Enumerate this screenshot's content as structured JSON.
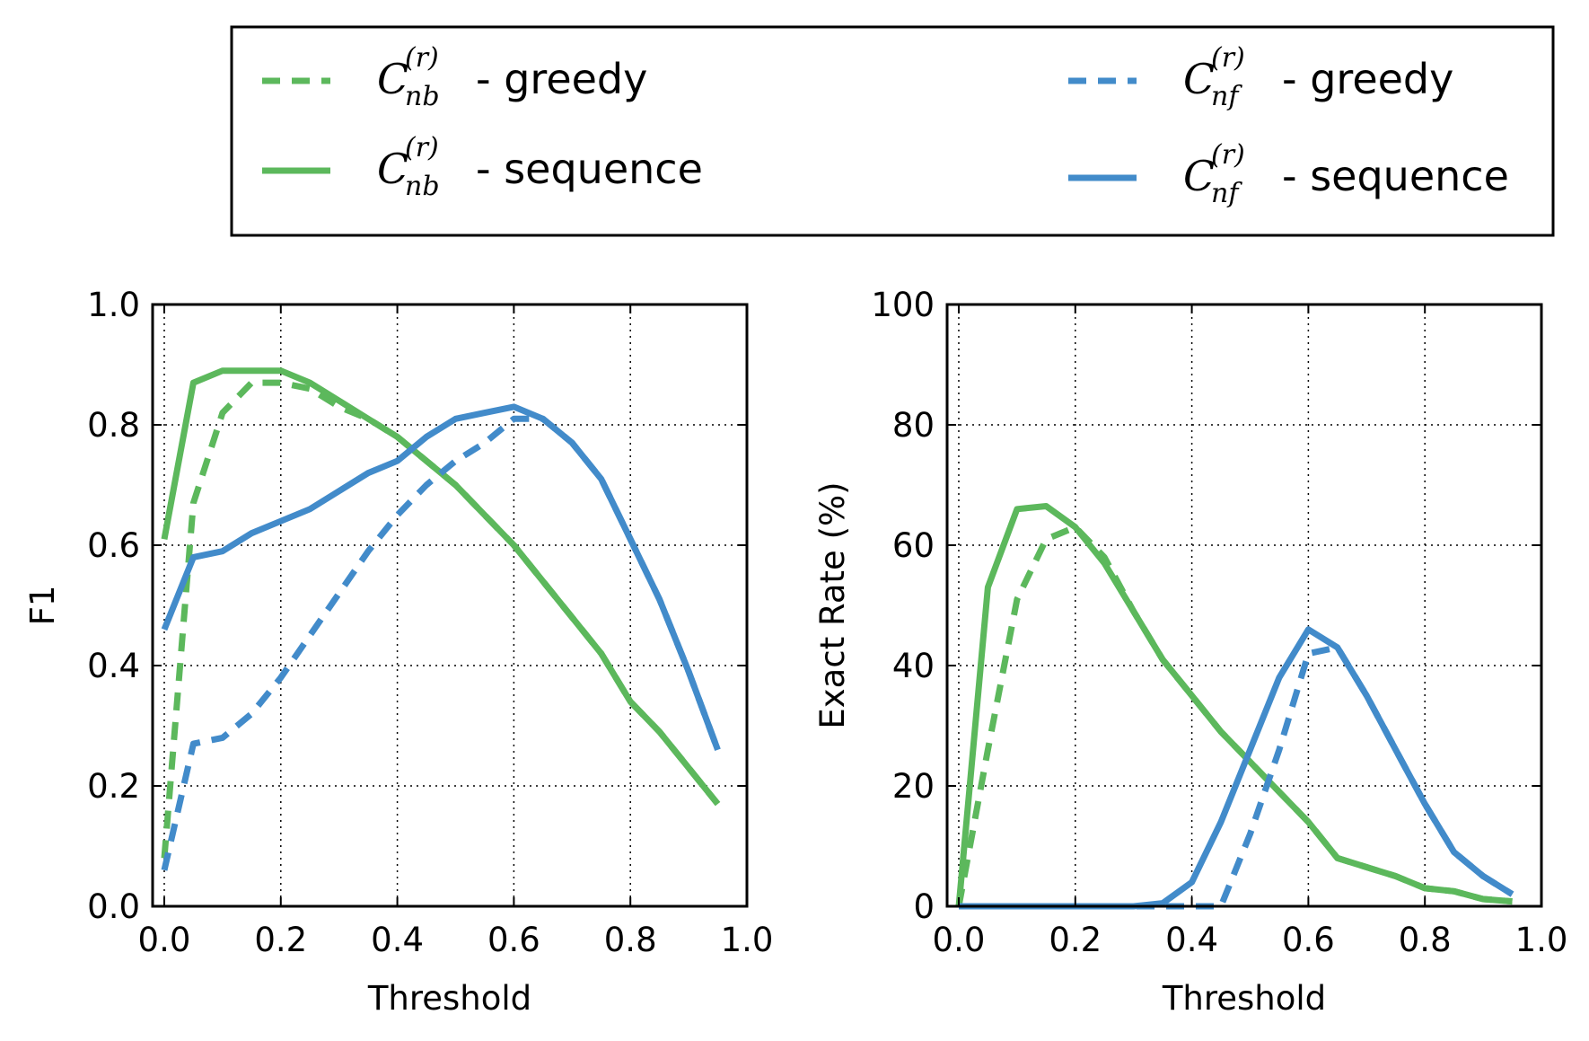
{
  "legend": {
    "entries": [
      {
        "symbol": "C",
        "sub": "nb",
        "sup": "(r)",
        "suffix": "- greedy",
        "color": "#5cb85c",
        "dash": true
      },
      {
        "symbol": "C",
        "sub": "nb",
        "sup": "(r)",
        "suffix": "- sequence",
        "color": "#5cb85c",
        "dash": false
      },
      {
        "symbol": "C",
        "sub": "nf",
        "sup": "(r)",
        "suffix": "- greedy",
        "color": "#428bca",
        "dash": true
      },
      {
        "symbol": "C",
        "sub": "nf",
        "sup": "(r)",
        "suffix": "- sequence",
        "color": "#428bca",
        "dash": false
      }
    ]
  },
  "chart_data": [
    {
      "type": "line",
      "xlabel": "Threshold",
      "ylabel": "F1",
      "xlim": [
        -0.02,
        1.0
      ],
      "ylim": [
        0.0,
        1.0
      ],
      "xticks": [
        "0.0",
        "0.2",
        "0.4",
        "0.6",
        "0.8",
        "1.0"
      ],
      "yticks": [
        "0.0",
        "0.2",
        "0.4",
        "0.6",
        "0.8",
        "1.0"
      ],
      "grid": true,
      "x": [
        0.0,
        0.05,
        0.1,
        0.15,
        0.2,
        0.25,
        0.3,
        0.35,
        0.4,
        0.45,
        0.5,
        0.55,
        0.6,
        0.65,
        0.7,
        0.75,
        0.8,
        0.85,
        0.9,
        0.95
      ],
      "series": [
        {
          "legend_index": 0,
          "color": "#5cb85c",
          "dash": true,
          "values": [
            0.08,
            0.67,
            0.82,
            0.87,
            0.87,
            0.86,
            0.83,
            0.81,
            0.78,
            0.74,
            0.7,
            0.65,
            0.6,
            0.54,
            0.48,
            0.42,
            0.34,
            0.29,
            0.23,
            0.17
          ]
        },
        {
          "legend_index": 1,
          "color": "#5cb85c",
          "dash": false,
          "values": [
            0.61,
            0.87,
            0.89,
            0.89,
            0.89,
            0.87,
            0.84,
            0.81,
            0.78,
            0.74,
            0.7,
            0.65,
            0.6,
            0.54,
            0.48,
            0.42,
            0.34,
            0.29,
            0.23,
            0.17
          ]
        },
        {
          "legend_index": 2,
          "color": "#428bca",
          "dash": true,
          "values": [
            0.06,
            0.27,
            0.28,
            0.32,
            0.38,
            0.45,
            0.52,
            0.59,
            0.65,
            0.7,
            0.74,
            0.77,
            0.81,
            0.81,
            0.77,
            0.71,
            0.61,
            0.51,
            0.39,
            0.26
          ]
        },
        {
          "legend_index": 3,
          "color": "#428bca",
          "dash": false,
          "values": [
            0.46,
            0.58,
            0.59,
            0.62,
            0.64,
            0.66,
            0.69,
            0.72,
            0.74,
            0.78,
            0.81,
            0.82,
            0.83,
            0.81,
            0.77,
            0.71,
            0.61,
            0.51,
            0.39,
            0.26
          ]
        }
      ]
    },
    {
      "type": "line",
      "xlabel": "Threshold",
      "ylabel": "Exact Rate (%)",
      "xlim": [
        -0.02,
        1.0
      ],
      "ylim": [
        0,
        100
      ],
      "xticks": [
        "0.0",
        "0.2",
        "0.4",
        "0.6",
        "0.8",
        "1.0"
      ],
      "yticks": [
        "0",
        "20",
        "40",
        "60",
        "80",
        "100"
      ],
      "grid": true,
      "x": [
        0.0,
        0.05,
        0.1,
        0.15,
        0.2,
        0.25,
        0.3,
        0.35,
        0.4,
        0.45,
        0.5,
        0.55,
        0.6,
        0.65,
        0.7,
        0.75,
        0.8,
        0.85,
        0.9,
        0.95
      ],
      "series": [
        {
          "legend_index": 0,
          "color": "#5cb85c",
          "dash": true,
          "values": [
            0,
            26,
            51,
            61,
            63,
            58,
            49,
            41,
            35,
            29,
            24,
            19,
            14,
            8,
            6.5,
            5,
            3,
            2.5,
            1.2,
            0.8
          ]
        },
        {
          "legend_index": 1,
          "color": "#5cb85c",
          "dash": false,
          "values": [
            0,
            53,
            66,
            66.5,
            63,
            57,
            49,
            41,
            35,
            29,
            24,
            19,
            14,
            8,
            6.5,
            5,
            3,
            2.5,
            1.2,
            0.8
          ]
        },
        {
          "legend_index": 2,
          "color": "#428bca",
          "dash": true,
          "values": [
            0,
            0,
            0,
            0,
            0,
            0,
            0,
            0,
            0,
            0,
            12,
            26,
            42,
            43,
            35,
            26,
            17,
            9,
            5,
            2
          ]
        },
        {
          "legend_index": 3,
          "color": "#428bca",
          "dash": false,
          "values": [
            0,
            0,
            0,
            0,
            0,
            0,
            0,
            0.5,
            4,
            14,
            26,
            38,
            46,
            43,
            35,
            26,
            17,
            9,
            5,
            2
          ]
        }
      ]
    }
  ]
}
